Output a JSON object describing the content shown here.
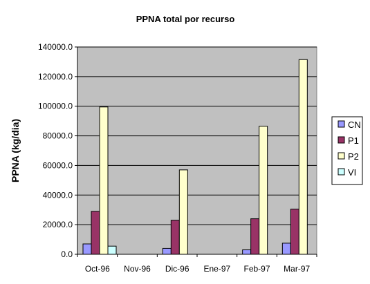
{
  "chart_data": {
    "type": "bar",
    "title": "PPNA total por recurso",
    "xlabel": "",
    "ylabel": "PPNA (kg/dia)",
    "ylim": [
      0,
      140000
    ],
    "yticks": [
      "0.0",
      "20000.0",
      "40000.0",
      "60000.0",
      "80000.0",
      "100000.0",
      "120000.0",
      "140000.0"
    ],
    "grid": true,
    "legend_position": "right",
    "categories": [
      "Oct-96",
      "Nov-96",
      "Dic-96",
      "Ene-97",
      "Feb-97",
      "Mar-97"
    ],
    "series": [
      {
        "name": "CN",
        "color": "#9999ff",
        "values": [
          7000,
          0,
          4000,
          0,
          3000,
          7500
        ]
      },
      {
        "name": "P1",
        "color": "#993366",
        "values": [
          29000,
          0,
          23000,
          0,
          24000,
          30500
        ]
      },
      {
        "name": "P2",
        "color": "#ffffcc",
        "values": [
          99500,
          0,
          57000,
          0,
          86500,
          131500
        ]
      },
      {
        "name": "VI",
        "color": "#ccffff",
        "values": [
          5500,
          0,
          0,
          0,
          0,
          0
        ]
      }
    ],
    "plot_background": "#c0c0c0"
  }
}
